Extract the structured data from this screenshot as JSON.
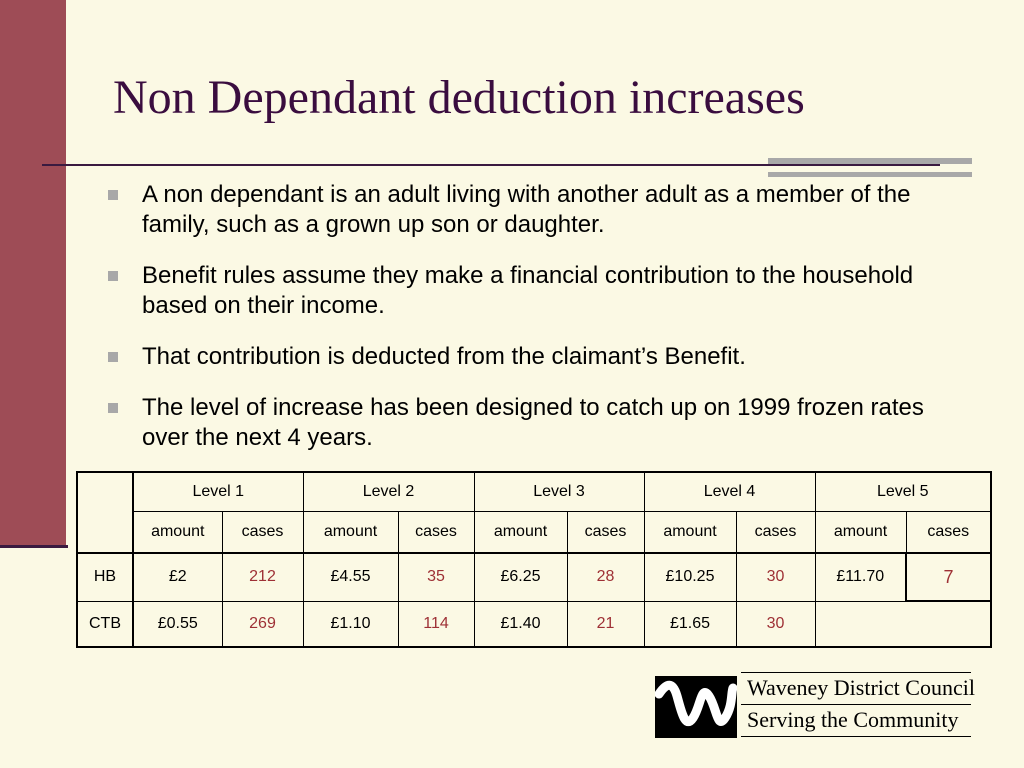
{
  "slide": {
    "title": "Non Dependant deduction increases",
    "bullets": [
      "A non dependant is an adult living with another adult as a member of the family, such as a grown up son or daughter.",
      "Benefit rules assume they make a financial contribution to the household based on their income.",
      "That contribution is deducted from the claimant’s Benefit.",
      "The level of increase has been designed to catch up on 1999 frozen rates over the next 4 years."
    ]
  },
  "table": {
    "levels": [
      "Level 1",
      "Level 2",
      "Level 3",
      "Level 4",
      "Level 5"
    ],
    "subheaders": {
      "amount": "amount",
      "cases": "cases"
    },
    "rows": [
      {
        "label": "HB",
        "cells": [
          {
            "amount": "£2",
            "cases": "212"
          },
          {
            "amount": "£4.55",
            "cases": "35"
          },
          {
            "amount": "£6.25",
            "cases": "28"
          },
          {
            "amount": "£10.25",
            "cases": "30"
          },
          {
            "amount": "£11.70",
            "cases": "7"
          }
        ]
      },
      {
        "label": "CTB",
        "cells": [
          {
            "amount": "£0.55",
            "cases": "269"
          },
          {
            "amount": "£1.10",
            "cases": "114"
          },
          {
            "amount": "£1.40",
            "cases": "21"
          },
          {
            "amount": "£1.65",
            "cases": "30"
          }
        ]
      }
    ]
  },
  "logo": {
    "name": "Waveney District Council",
    "tagline": "Serving the Community"
  },
  "colors": {
    "background": "#FBF9E4",
    "sidebar": "#9E4C56",
    "title": "#3A0D3F",
    "accent_gray": "#A8A8A8",
    "cases_text": "#9E3035"
  }
}
